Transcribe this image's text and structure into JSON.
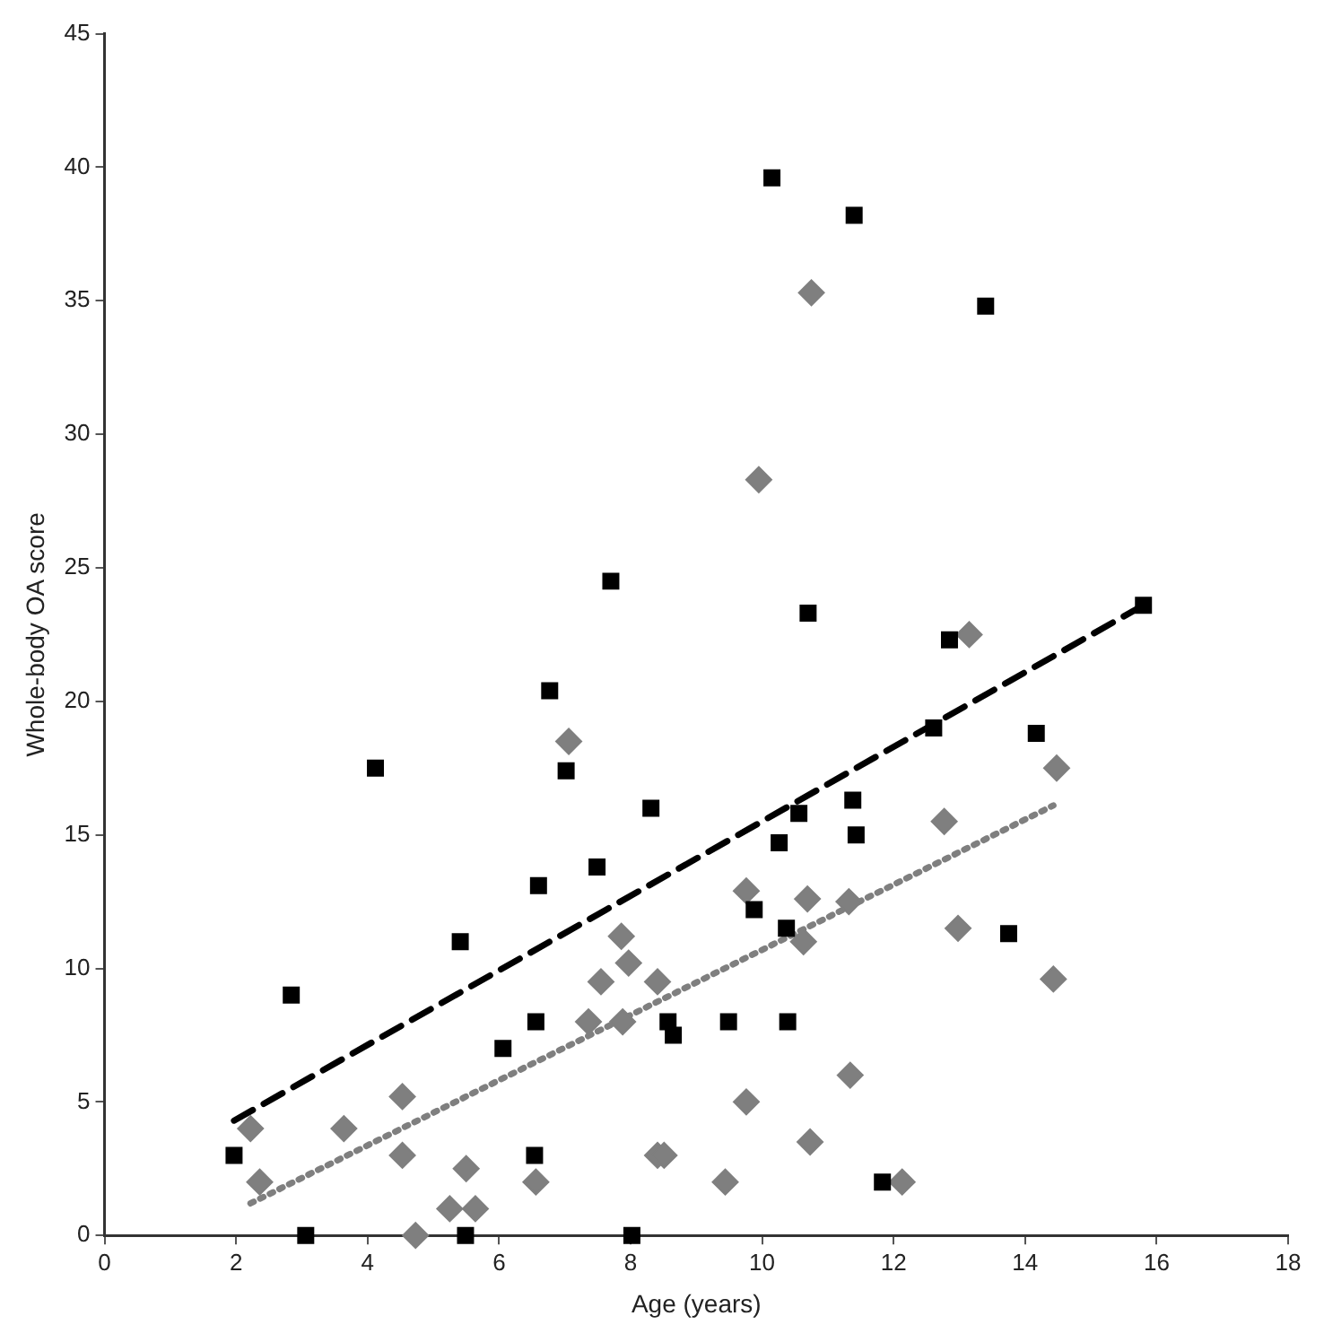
{
  "chart_data": {
    "type": "scatter",
    "xlabel": "Age (years)",
    "ylabel": "Whole-body OA score",
    "xlim": [
      0,
      18
    ],
    "xticks": [
      0,
      2,
      4,
      6,
      8,
      10,
      12,
      14,
      16,
      18
    ],
    "ylim": [
      0,
      45
    ],
    "yticks": [
      0,
      5,
      10,
      15,
      20,
      25,
      30,
      35,
      40,
      45
    ],
    "grid": false,
    "legend": false,
    "series": [
      {
        "type": "scatter",
        "marker": "square",
        "color": "#000000",
        "x": [
          6.77,
          7.02,
          4.12,
          8.31,
          7.49,
          6.6,
          5.41,
          2.84,
          6.56,
          6.06,
          8.57,
          8.65,
          1.97,
          6.54,
          3.06,
          5.49,
          8.02,
          12.61,
          14.17,
          11.38,
          11.43,
          10.56,
          10.26,
          9.88,
          10.37,
          13.75,
          9.49,
          10.39,
          11.83,
          10.15,
          11.4,
          13.4,
          7.7,
          10.7,
          12.85,
          15.8
        ],
        "values": [
          20.4,
          17.4,
          17.5,
          16,
          13.8,
          13.1,
          11,
          9,
          8,
          7,
          8,
          7.5,
          3,
          3,
          0,
          0,
          0,
          19,
          18.8,
          16.3,
          15,
          15.8,
          14.7,
          12.2,
          11.5,
          11.3,
          8,
          8,
          2,
          39.6,
          38.2,
          34.8,
          24.5,
          23.3,
          22.3,
          23.6
        ]
      },
      {
        "type": "scatter",
        "marker": "diamond",
        "color": "#7f7f7f",
        "x": [
          7.06,
          7.86,
          7.97,
          7.55,
          8.41,
          7.36,
          7.88,
          2.22,
          3.64,
          4.53,
          4.53,
          2.36,
          5.5,
          6.56,
          5.25,
          5.64,
          4.73,
          8.41,
          8.51,
          14.48,
          12.77,
          9.76,
          10.69,
          11.32,
          10.63,
          12.98,
          14.43,
          11.34,
          9.76,
          10.73,
          9.44,
          12.13,
          10.75,
          9.95,
          13.15
        ],
        "values": [
          18.5,
          11.2,
          10.2,
          9.5,
          9.5,
          8,
          8,
          4,
          4,
          5.2,
          3,
          2,
          2.5,
          2,
          1,
          1,
          0,
          3,
          3,
          17.5,
          15.5,
          12.9,
          12.6,
          12.5,
          11,
          11.5,
          9.6,
          6,
          5,
          3.5,
          2,
          2,
          35.3,
          28.3,
          22.5
        ]
      },
      {
        "type": "line",
        "marker": "none",
        "line_style": "dashed",
        "color": "#000000",
        "x": [
          1.97,
          15.8
        ],
        "values": [
          4.3,
          23.6
        ]
      },
      {
        "type": "line",
        "marker": "none",
        "line_style": "dotted",
        "color": "#7f7f7f",
        "x": [
          2.22,
          14.43
        ],
        "values": [
          1.2,
          16.1
        ]
      }
    ]
  }
}
